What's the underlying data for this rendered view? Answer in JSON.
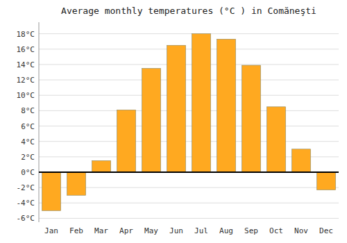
{
  "chart_data": {
    "type": "bar",
    "title": "Average monthly temperatures (°C ) in Comăneşti",
    "categories": [
      "Jan",
      "Feb",
      "Mar",
      "Apr",
      "May",
      "Jun",
      "Jul",
      "Aug",
      "Sep",
      "Oct",
      "Nov",
      "Dec"
    ],
    "values": [
      -5.0,
      -3.0,
      1.5,
      8.1,
      13.5,
      16.5,
      18.0,
      17.3,
      13.9,
      8.5,
      3.0,
      -2.3
    ],
    "color": "#FFA920",
    "ylim": [
      -6.5,
      19.5
    ],
    "yticks": [
      {
        "value": -6,
        "label": "-6°C"
      },
      {
        "value": -4,
        "label": "-4°C"
      },
      {
        "value": -2,
        "label": "-2°C"
      },
      {
        "value": 0,
        "label": "0°C"
      },
      {
        "value": 2,
        "label": "2°C"
      },
      {
        "value": 4,
        "label": "4°C"
      },
      {
        "value": 6,
        "label": "6°C"
      },
      {
        "value": 8,
        "label": "8°C"
      },
      {
        "value": 10,
        "label": "10°C"
      },
      {
        "value": 12,
        "label": "12°C"
      },
      {
        "value": 14,
        "label": "14°C"
      },
      {
        "value": 16,
        "label": "16°C"
      },
      {
        "value": 18,
        "label": "18°C"
      }
    ],
    "grid": true
  }
}
